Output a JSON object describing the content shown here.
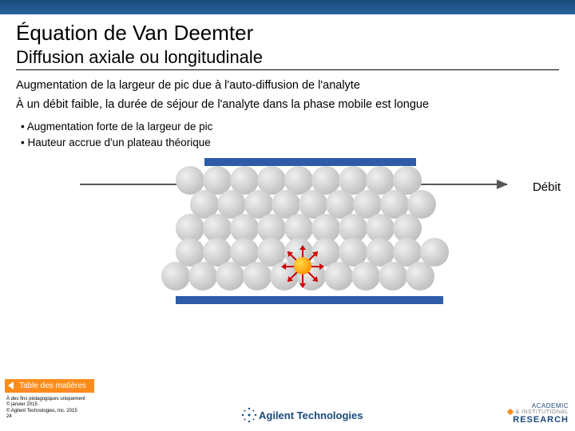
{
  "title": "Équation de Van Deemter",
  "subtitle": "Diffusion axiale ou longitudinale",
  "para1": "Augmentation de la largeur de pic due à l'auto-diffusion de l'analyte",
  "para2": "À un débit faible, la durée de séjour de l'analyte dans la phase mobile est longue",
  "bullet1": "• Augmentation forte de la largeur de pic",
  "bullet2": "• Hauteur accrue d'un plateau théorique",
  "flow_label": "Débit",
  "toc": "Table des matières",
  "footer1": "À des fins pédagogiques uniquement",
  "footer2": "© janvier 2015",
  "footer3": "© Agilent Technologies, Inc. 2015",
  "footer4": "24",
  "agilent": "Agilent Technologies",
  "air1": "ACADEMIC",
  "air2": "& INSTITUTIONAL",
  "air3": "RESEARCH",
  "diagram": {
    "bar_color": "#2e5ca8",
    "particle_color": "#c8c8c8",
    "analyte_color": "#ff9900",
    "arrow_color": "#cc0000",
    "rows": [
      9,
      9,
      9,
      10,
      10
    ],
    "arrow_angles": [
      0,
      45,
      90,
      135,
      180,
      225,
      270,
      315
    ]
  }
}
